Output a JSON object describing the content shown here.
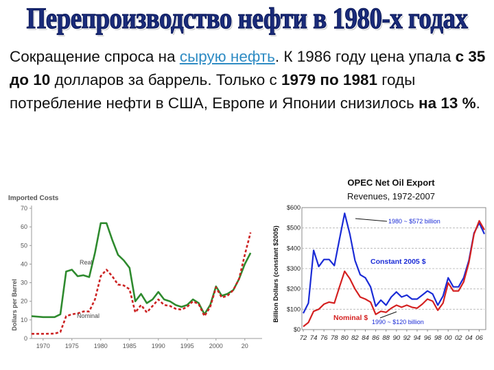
{
  "title": "Перепроизводство нефти в 1980-х годах",
  "paragraph": {
    "p1": "Сокращение спроса на ",
    "link": "сырую нефть",
    "p2": ". К 1986 году цена упала ",
    "b1": "с 35 до 10",
    "p3": " долларов за баррель. Только с ",
    "b2": "1979 по 1981",
    "p4": " годы потребление нефти в США, Европе и Японии снизилось ",
    "b3": "на 13 %",
    "p5": "."
  },
  "colors": {
    "real": "#2e8a2e",
    "nominal": "#cc2222",
    "constant": "#1a2bd6",
    "nominal2": "#d42020",
    "title": "#1a2b7a"
  },
  "chart_data": [
    {
      "type": "line",
      "title": "Imported Costs",
      "ylabel": "Dollars per Barrel",
      "xlim": [
        1968,
        2008
      ],
      "ylim": [
        0,
        70
      ],
      "x_ticks": [
        "1970",
        "1975",
        "1980",
        "1985",
        "1990",
        "1995",
        "2000",
        "20"
      ],
      "y_ticks": [
        "0",
        "10",
        "20",
        "30",
        "40",
        "50",
        "60",
        "70"
      ],
      "annotations": [
        "Real",
        "Nominal"
      ],
      "series": [
        {
          "name": "Real",
          "x": [
            1968,
            1970,
            1972,
            1973,
            1974,
            1975,
            1976,
            1977,
            1978,
            1979,
            1980,
            1981,
            1982,
            1983,
            1984,
            1985,
            1986,
            1987,
            1988,
            1989,
            1990,
            1991,
            1992,
            1993,
            1994,
            1995,
            1996,
            1997,
            1998,
            1999,
            2000,
            2001,
            2002,
            2003,
            2004,
            2005,
            2006
          ],
          "values": [
            12,
            11.5,
            11.5,
            13,
            36,
            37,
            33.5,
            34,
            33,
            46,
            62,
            62,
            53,
            45,
            42,
            38,
            20,
            24,
            19,
            21,
            25,
            21,
            20,
            18,
            17,
            18,
            21,
            19,
            13,
            18,
            28,
            23,
            24,
            26,
            32,
            40,
            46
          ]
        },
        {
          "name": "Nominal",
          "x": [
            1968,
            1970,
            1972,
            1973,
            1974,
            1975,
            1976,
            1977,
            1978,
            1979,
            1980,
            1981,
            1982,
            1983,
            1984,
            1985,
            1986,
            1987,
            1988,
            1989,
            1990,
            1991,
            1992,
            1993,
            1994,
            1995,
            1996,
            1997,
            1998,
            1999,
            2000,
            2001,
            2002,
            2003,
            2004,
            2005,
            2006
          ],
          "values": [
            2.5,
            2.5,
            2.6,
            3.5,
            12,
            13,
            13.5,
            14.5,
            14.5,
            21,
            33.5,
            37,
            33.5,
            29,
            28.5,
            26.5,
            14,
            18,
            14,
            17.5,
            21,
            18,
            17.5,
            16,
            15.5,
            17,
            20,
            18.5,
            12,
            17,
            27.5,
            22,
            23,
            26,
            32,
            45,
            57
          ]
        }
      ]
    },
    {
      "type": "line",
      "title": "OPEC Net Oil Export",
      "subtitle": "Revenues, 1972-2007",
      "ylabel": "Billion Dollars (constant $2005)",
      "xlim": [
        1972,
        2007
      ],
      "ylim": [
        0,
        600
      ],
      "x_ticks": [
        "72",
        "74",
        "76",
        "78",
        "80",
        "82",
        "84",
        "86",
        "88",
        "90",
        "92",
        "94",
        "96",
        "98",
        "00",
        "02",
        "04",
        "06"
      ],
      "y_ticks": [
        "$0",
        "$100",
        "$200",
        "$300",
        "$400",
        "$500",
        "$600"
      ],
      "annotations": [
        "1980 ~ $572 billion",
        "Constant 2005 $",
        "Nominal $",
        "1990 ~ $120 billion"
      ],
      "series": [
        {
          "name": "Constant 2005 $",
          "x": [
            1972,
            1973,
            1974,
            1975,
            1976,
            1977,
            1978,
            1979,
            1980,
            1981,
            1982,
            1983,
            1984,
            1985,
            1986,
            1987,
            1988,
            1989,
            1990,
            1991,
            1992,
            1993,
            1994,
            1995,
            1996,
            1997,
            1998,
            1999,
            2000,
            2001,
            2002,
            2003,
            2004,
            2005,
            2006,
            2007
          ],
          "values": [
            80,
            130,
            390,
            310,
            345,
            345,
            315,
            445,
            572,
            470,
            340,
            270,
            255,
            210,
            115,
            145,
            120,
            160,
            185,
            160,
            170,
            150,
            150,
            170,
            190,
            175,
            120,
            165,
            255,
            210,
            210,
            255,
            340,
            475,
            525,
            470
          ]
        },
        {
          "name": "Nominal $",
          "x": [
            1972,
            1973,
            1974,
            1975,
            1976,
            1977,
            1978,
            1979,
            1980,
            1981,
            1982,
            1983,
            1984,
            1985,
            1986,
            1987,
            1988,
            1989,
            1990,
            1991,
            1992,
            1993,
            1994,
            1995,
            1996,
            1997,
            1998,
            1999,
            2000,
            2001,
            2002,
            2003,
            2004,
            2005,
            2006,
            2007
          ],
          "values": [
            15,
            35,
            90,
            100,
            125,
            135,
            130,
            210,
            287,
            250,
            200,
            160,
            150,
            135,
            75,
            90,
            85,
            105,
            120,
            110,
            120,
            110,
            105,
            125,
            150,
            140,
            95,
            130,
            230,
            190,
            190,
            235,
            330,
            470,
            535,
            490
          ]
        }
      ]
    }
  ]
}
